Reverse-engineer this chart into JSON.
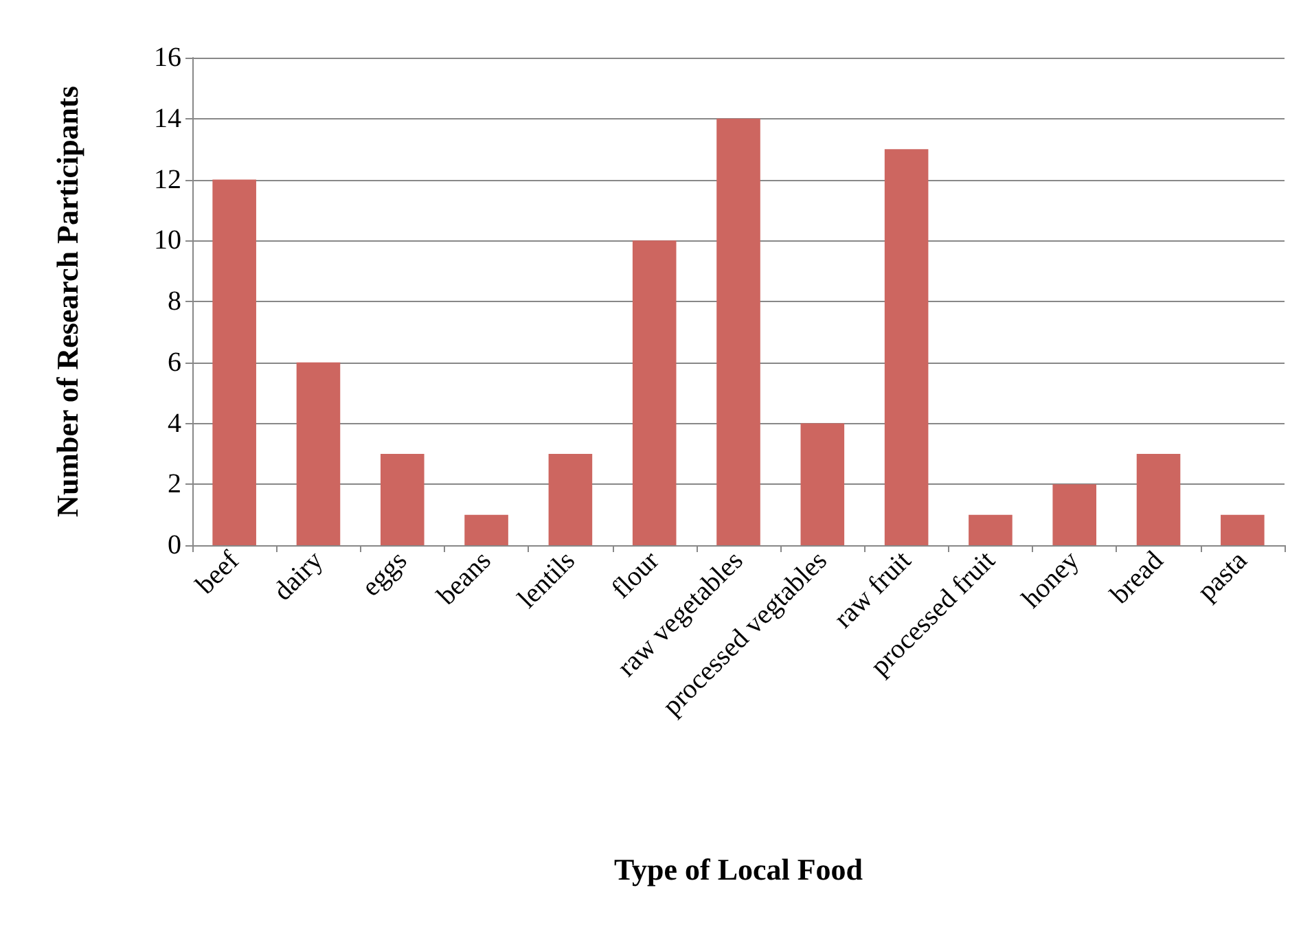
{
  "chart_data": {
    "type": "bar",
    "xlabel": "Type of Local Food",
    "ylabel": "Number of Research Participants",
    "categories": [
      "beef",
      "dairy",
      "eggs",
      "beans",
      "lentils",
      "flour",
      "raw vegetables",
      "processed vegtables",
      "raw fruit",
      "processed fruit",
      "honey",
      "bread",
      "pasta"
    ],
    "values": [
      12,
      6,
      3,
      1,
      3,
      10,
      14,
      4,
      13,
      1,
      2,
      3,
      1
    ],
    "color": "#cd6660",
    "ylim": [
      0,
      16
    ],
    "yticks": [
      0,
      2,
      4,
      6,
      8,
      10,
      12,
      14,
      16
    ],
    "grid": "y"
  }
}
